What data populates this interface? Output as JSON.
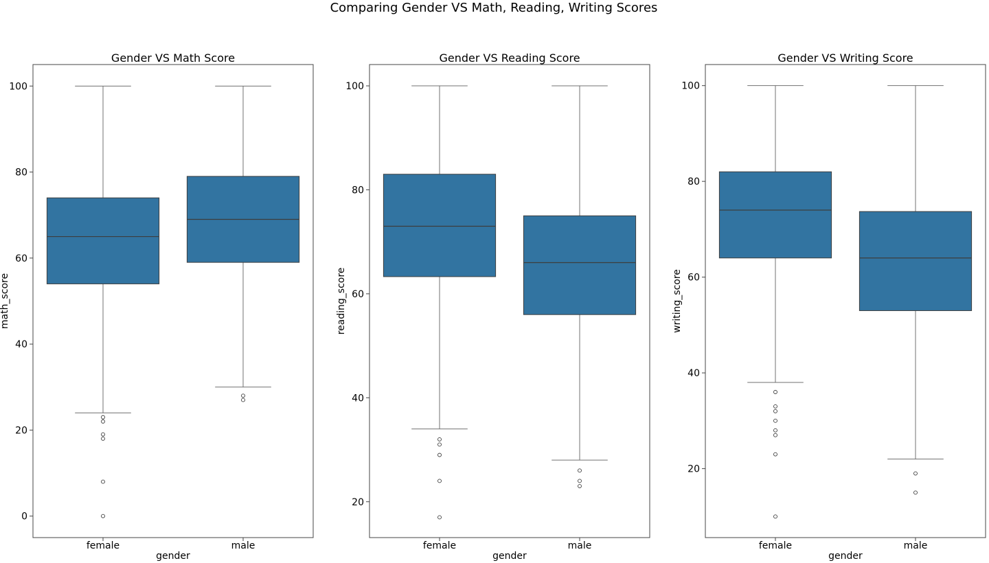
{
  "figure": {
    "suptitle": "Comparing Gender VS Math, Reading, Writing Scores"
  },
  "colors": {
    "box": "#3274a1",
    "line": "#3d3d3d",
    "whisker": "#707070",
    "frame": "#444444"
  },
  "chart_data": [
    {
      "type": "box",
      "title": "Gender VS Math Score",
      "xlabel": "gender",
      "ylabel": "math_score",
      "ylim": [
        -5,
        105
      ],
      "yticks": [
        0,
        20,
        40,
        60,
        80,
        100
      ],
      "categories": [
        "female",
        "male"
      ],
      "boxes": [
        {
          "category": "female",
          "whisker_low": 24,
          "q1": 54,
          "median": 65,
          "q3": 74,
          "whisker_high": 100,
          "outliers": [
            23,
            22,
            19,
            18,
            8,
            0
          ]
        },
        {
          "category": "male",
          "whisker_low": 30,
          "q1": 59,
          "median": 69,
          "q3": 79,
          "whisker_high": 100,
          "outliers": [
            28,
            27
          ]
        }
      ]
    },
    {
      "type": "box",
      "title": "Gender VS Reading Score",
      "xlabel": "gender",
      "ylabel": "reading_score",
      "ylim": [
        13.1,
        104.1
      ],
      "yticks": [
        20,
        40,
        60,
        80,
        100
      ],
      "categories": [
        "female",
        "male"
      ],
      "boxes": [
        {
          "category": "female",
          "whisker_low": 34,
          "q1": 63.3,
          "median": 73,
          "q3": 83,
          "whisker_high": 100,
          "outliers": [
            32,
            31,
            29,
            24,
            17
          ]
        },
        {
          "category": "male",
          "whisker_low": 28,
          "q1": 56,
          "median": 66,
          "q3": 75,
          "whisker_high": 100,
          "outliers": [
            26,
            24,
            23
          ]
        }
      ]
    },
    {
      "type": "box",
      "title": "Gender VS Writing Score",
      "xlabel": "gender",
      "ylabel": "writing_score",
      "ylim": [
        5.6,
        104.4
      ],
      "yticks": [
        20,
        40,
        60,
        80,
        100
      ],
      "categories": [
        "female",
        "male"
      ],
      "boxes": [
        {
          "category": "female",
          "whisker_low": 38,
          "q1": 64,
          "median": 74,
          "q3": 82,
          "whisker_high": 100,
          "outliers": [
            36,
            33,
            32,
            30,
            28,
            27,
            23,
            10
          ]
        },
        {
          "category": "male",
          "whisker_low": 22,
          "q1": 53,
          "median": 64,
          "q3": 73.7,
          "whisker_high": 100,
          "outliers": [
            19,
            15
          ]
        }
      ]
    }
  ]
}
